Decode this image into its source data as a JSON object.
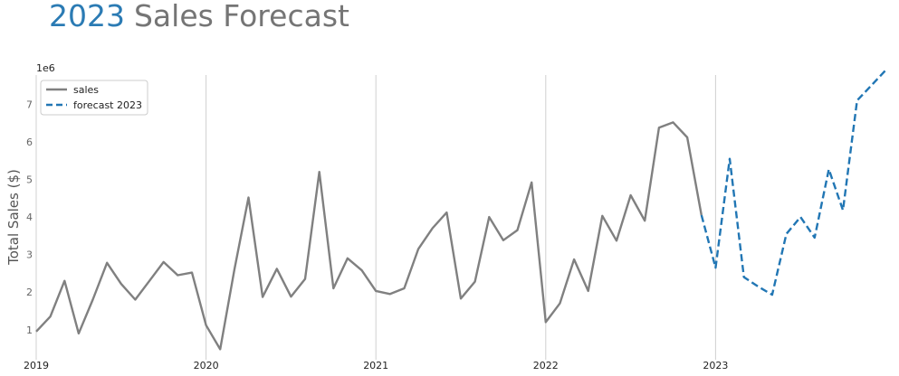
{
  "chart_data": {
    "type": "line",
    "title_highlight": "2023",
    "title_rest": "Sales Forecast",
    "ylabel": "Total Sales ($)",
    "y_multiplier": "1e6",
    "ylim": [
      0.2,
      7.9
    ],
    "y_ticks": [
      1,
      2,
      3,
      4,
      5,
      6,
      7
    ],
    "xlim": [
      0,
      60
    ],
    "x_ticks": [
      {
        "value": 0,
        "label": "2019"
      },
      {
        "value": 12,
        "label": "2020"
      },
      {
        "value": 24,
        "label": "2021"
      },
      {
        "value": 36,
        "label": "2022"
      },
      {
        "value": 48,
        "label": "2023"
      }
    ],
    "vertical_grid": true,
    "legend_position": "top-left",
    "series": [
      {
        "name": "sales",
        "color": "#808080",
        "dashed": false,
        "x": [
          0,
          1,
          2,
          3,
          4,
          5,
          6,
          7,
          8,
          9,
          10,
          11,
          12,
          13,
          14,
          15,
          16,
          17,
          18,
          19,
          20,
          21,
          22,
          23,
          24,
          25,
          26,
          27,
          28,
          29,
          30,
          31,
          32,
          33,
          34,
          35,
          36,
          37,
          38,
          39,
          40,
          41,
          42,
          43,
          44,
          45,
          46,
          47
        ],
        "values": [
          0.95,
          1.35,
          2.3,
          0.9,
          1.8,
          2.78,
          2.22,
          1.8,
          2.3,
          2.8,
          2.45,
          2.52,
          1.12,
          0.48,
          2.6,
          4.52,
          1.87,
          2.62,
          1.88,
          2.35,
          5.2,
          2.1,
          2.9,
          2.58,
          2.03,
          1.95,
          2.1,
          3.15,
          3.7,
          4.12,
          1.83,
          2.28,
          4.0,
          3.38,
          3.65,
          4.92,
          1.2,
          1.7,
          2.87,
          2.03,
          4.03,
          3.37,
          4.58,
          3.9,
          6.38,
          6.52,
          6.12,
          4.05
        ]
      },
      {
        "name": "forecast 2023",
        "color": "#2176b4",
        "dashed": true,
        "x": [
          47,
          48,
          49,
          50,
          51,
          52,
          53,
          54,
          55,
          56,
          57,
          58,
          59,
          60
        ],
        "values": [
          4.05,
          2.65,
          5.55,
          2.4,
          2.15,
          1.93,
          3.55,
          4.0,
          3.45,
          5.27,
          4.18,
          7.1,
          7.5,
          7.9
        ]
      }
    ]
  }
}
